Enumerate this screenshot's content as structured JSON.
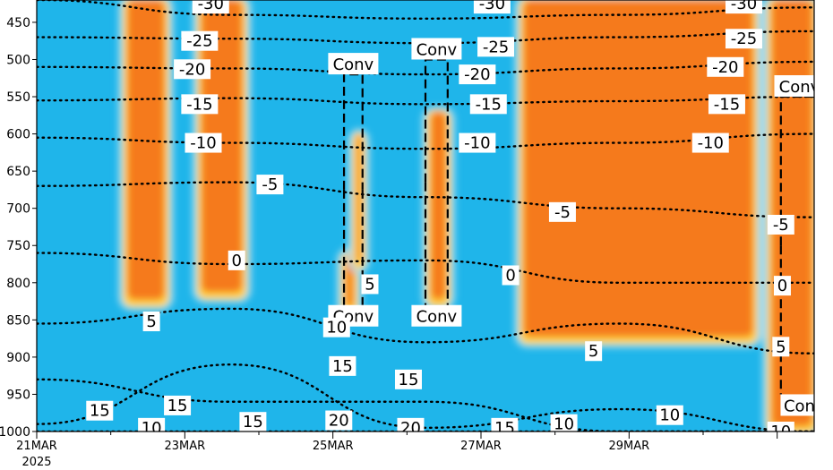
{
  "chart_data": {
    "type": "heatmap",
    "title": "",
    "xlabel": "",
    "ylabel": "",
    "y_axis": {
      "ticks": [
        450,
        500,
        550,
        600,
        650,
        700,
        750,
        800,
        850,
        900,
        950,
        1000
      ],
      "range": [
        420,
        1000
      ],
      "inverted": true
    },
    "x_axis": {
      "ticks": [
        "21MAR",
        "23MAR",
        "25MAR",
        "27MAR",
        "29MAR"
      ],
      "year_label": "2025",
      "range_days": [
        0,
        10.5
      ]
    },
    "colors": {
      "background": "#1fb5ea",
      "light": "#9fdcf3",
      "yellow": "#ffd23c",
      "orange": "#f57a1e",
      "red": "#f25a10"
    },
    "cloud_columns": [
      {
        "name": "Mar22",
        "x": [
          1.2,
          1.75
        ],
        "p": [
          420,
          830
        ]
      },
      {
        "name": "Mar23",
        "x": [
          2.2,
          2.8
        ],
        "p": [
          420,
          820
        ]
      },
      {
        "name": "Mar24-late",
        "x": [
          4.15,
          4.3
        ],
        "p": [
          760,
          840
        ]
      },
      {
        "name": "Mar24-upper",
        "x": [
          4.3,
          4.4
        ],
        "p": [
          600,
          780
        ]
      },
      {
        "name": "Mar25",
        "x": [
          5.3,
          5.55
        ],
        "p": [
          570,
          830
        ]
      },
      {
        "name": "Mar26-29",
        "x": [
          6.55,
          9.7
        ],
        "p": [
          420,
          880
        ]
      },
      {
        "name": "Mar30",
        "x": [
          9.9,
          10.5
        ],
        "p": [
          420,
          1000
        ]
      }
    ],
    "temperature_contours": [
      {
        "label": "-30",
        "p": [
          420,
          440,
          445,
          440,
          430
        ]
      },
      {
        "label": "-25",
        "p": [
          470,
          472,
          478,
          470,
          462
        ]
      },
      {
        "label": "-20",
        "p": [
          510,
          512,
          520,
          512,
          503
        ]
      },
      {
        "label": "-15",
        "p": [
          555,
          552,
          560,
          556,
          550
        ]
      },
      {
        "label": "-10",
        "p": [
          605,
          612,
          620,
          612,
          600
        ]
      },
      {
        "label": "-5",
        "p": [
          670,
          665,
          685,
          700,
          712
        ]
      },
      {
        "label": "0",
        "p": [
          760,
          775,
          770,
          800,
          800
        ]
      },
      {
        "label": "5",
        "p": [
          855,
          835,
          880,
          855,
          895
        ]
      },
      {
        "label": "10",
        "p": [
          990,
          910,
          995,
          970,
          1000
        ]
      },
      {
        "label": "15",
        "p": [
          930,
          960,
          960,
          1000,
          1000
        ]
      },
      {
        "label": "20",
        "p": [
          1000,
          1000,
          1000,
          1000,
          1000
        ]
      }
    ],
    "contour_labels": [
      {
        "text": "-30",
        "x": 2.35,
        "p": 425
      },
      {
        "text": "-25",
        "x": 2.2,
        "p": 475
      },
      {
        "text": "-20",
        "x": 2.1,
        "p": 513
      },
      {
        "text": "-15",
        "x": 2.2,
        "p": 560
      },
      {
        "text": "-10",
        "x": 2.25,
        "p": 612
      },
      {
        "text": "-5",
        "x": 3.15,
        "p": 668
      },
      {
        "text": "0",
        "x": 2.7,
        "p": 770
      },
      {
        "text": "5",
        "x": 1.55,
        "p": 852
      },
      {
        "text": "15",
        "x": 0.85,
        "p": 972
      },
      {
        "text": "10",
        "x": 1.55,
        "p": 995
      },
      {
        "text": "15",
        "x": 1.9,
        "p": 965
      },
      {
        "text": "15",
        "x": 2.92,
        "p": 987
      },
      {
        "text": "10",
        "x": 4.05,
        "p": 860
      },
      {
        "text": "5",
        "x": 4.5,
        "p": 802
      },
      {
        "text": "15",
        "x": 4.13,
        "p": 912
      },
      {
        "text": "20",
        "x": 4.08,
        "p": 985
      },
      {
        "text": "15",
        "x": 5.02,
        "p": 930
      },
      {
        "text": "20",
        "x": 5.05,
        "p": 995
      },
      {
        "text": "-30",
        "x": 6.15,
        "p": 425
      },
      {
        "text": "-25",
        "x": 6.2,
        "p": 483
      },
      {
        "text": "-20",
        "x": 5.95,
        "p": 520
      },
      {
        "text": "-15",
        "x": 6.1,
        "p": 560
      },
      {
        "text": "-10",
        "x": 5.95,
        "p": 612
      },
      {
        "text": "-5",
        "x": 7.1,
        "p": 705
      },
      {
        "text": "0",
        "x": 6.4,
        "p": 790
      },
      {
        "text": "15",
        "x": 6.32,
        "p": 995
      },
      {
        "text": "10",
        "x": 7.12,
        "p": 990
      },
      {
        "text": "5",
        "x": 7.52,
        "p": 892
      },
      {
        "text": "-30",
        "x": 9.55,
        "p": 425
      },
      {
        "text": "-25",
        "x": 9.55,
        "p": 472
      },
      {
        "text": "-20",
        "x": 9.3,
        "p": 510
      },
      {
        "text": "-15",
        "x": 9.32,
        "p": 560
      },
      {
        "text": "-10",
        "x": 9.1,
        "p": 612
      },
      {
        "text": "-5",
        "x": 10.05,
        "p": 722
      },
      {
        "text": "0",
        "x": 10.07,
        "p": 804
      },
      {
        "text": "5",
        "x": 10.05,
        "p": 886
      },
      {
        "text": "10",
        "x": 8.55,
        "p": 978
      },
      {
        "text": "10",
        "x": 10.05,
        "p": 1000
      }
    ],
    "conv_regions": [
      {
        "label": "Conv",
        "label_pos": "top",
        "x": [
          4.15,
          4.4
        ],
        "p": [
          520,
          830
        ]
      },
      {
        "label": "Conv",
        "label_pos": "bottom",
        "x": [
          4.15,
          4.4
        ],
        "p": [
          520,
          830
        ]
      },
      {
        "label": "Conv",
        "label_pos": "top",
        "x": [
          5.25,
          5.55
        ],
        "p": [
          500,
          830
        ]
      },
      {
        "label": "Conv",
        "label_pos": "bottom",
        "x": [
          5.25,
          5.55
        ],
        "p": [
          500,
          830
        ]
      },
      {
        "label": "Conv",
        "label_pos": "top",
        "x": [
          10.05,
          10.55
        ],
        "p": [
          550,
          950
        ]
      },
      {
        "label": "Con",
        "label_pos": "bottom",
        "x": [
          10.05,
          10.55
        ],
        "p": [
          550,
          950
        ]
      }
    ]
  }
}
